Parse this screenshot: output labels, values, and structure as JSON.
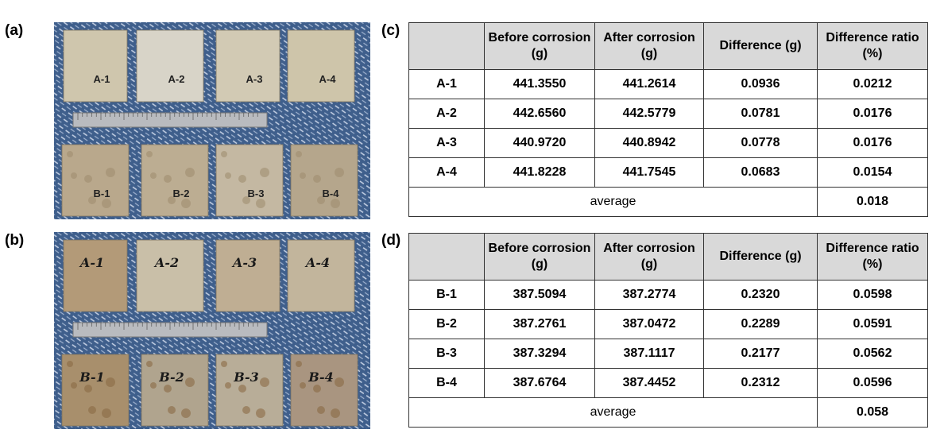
{
  "panels": [
    {
      "label": "(a)",
      "samples": [
        "A-1",
        "A-2",
        "A-3",
        "A-4",
        "B-1",
        "B-2",
        "B-3",
        "B-4"
      ]
    },
    {
      "label": "(b)",
      "samples": [
        "A-1",
        "A-2",
        "A-3",
        "A-4",
        "B-1",
        "B-2",
        "B-3",
        "B-4"
      ]
    }
  ],
  "tables": [
    {
      "label": "(c)",
      "header": [
        "Before corrosion (g)",
        "After corrosion (g)",
        "Difference (g)",
        "Difference ratio (%)"
      ],
      "rows": [
        [
          "A-1",
          "441.3550",
          "441.2614",
          "0.0936",
          "0.0212"
        ],
        [
          "A-2",
          "442.6560",
          "442.5779",
          "0.0781",
          "0.0176"
        ],
        [
          "A-3",
          "440.9720",
          "440.8942",
          "0.0778",
          "0.0176"
        ],
        [
          "A-4",
          "441.8228",
          "441.7545",
          "0.0683",
          "0.0154"
        ]
      ],
      "average_label": "average",
      "average": "0.018"
    },
    {
      "label": "(d)",
      "header": [
        "Before corrosion (g)",
        "After corrosion (g)",
        "Difference (g)",
        "Difference ratio (%)"
      ],
      "rows": [
        [
          "B-1",
          "387.5094",
          "387.2774",
          "0.2320",
          "0.0598"
        ],
        [
          "B-2",
          "387.2761",
          "387.0472",
          "0.2289",
          "0.0591"
        ],
        [
          "B-3",
          "387.3294",
          "387.1117",
          "0.2177",
          "0.0562"
        ],
        [
          "B-4",
          "387.6764",
          "387.4452",
          "0.2312",
          "0.0596"
        ]
      ],
      "average_label": "average",
      "average": "0.058"
    }
  ]
}
